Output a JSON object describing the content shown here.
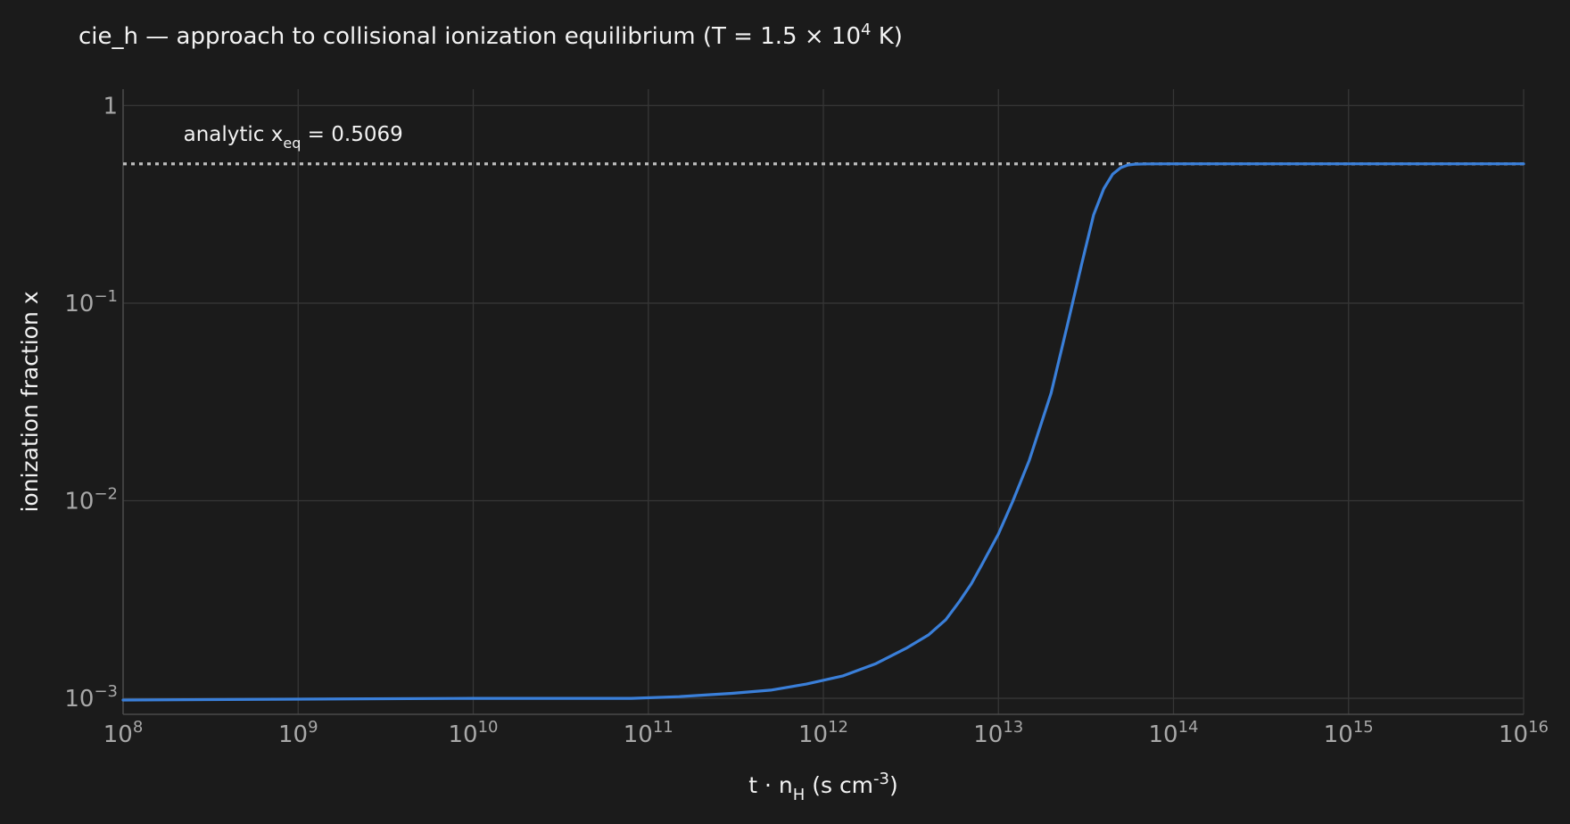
{
  "chart_data": {
    "type": "line",
    "title": "cie_h — approach to collisional ionization equilibrium (T = 1.5 × 10⁴ K)",
    "title_parts": {
      "main": "cie_h — approach to collisional ionization equilibrium (T = 1.5 × 10",
      "sup": "4",
      "tail": " K)"
    },
    "xlabel": "t · n_H  (s cm⁻³)",
    "xlabel_parts": {
      "pre": "t · n",
      "sub": "H",
      "mid": "  (s cm",
      "sup": "-3",
      "post": ")"
    },
    "ylabel": "ionization fraction x",
    "x_scale": "log",
    "y_scale": "log",
    "xlim": [
      100000000.0,
      1e+16
    ],
    "ylim": [
      0.00083,
      1.21
    ],
    "grid": true,
    "x_ticks": [
      {
        "value": 100000000.0,
        "base": "10",
        "exp": "8"
      },
      {
        "value": 1000000000.0,
        "base": "10",
        "exp": "9"
      },
      {
        "value": 10000000000.0,
        "base": "10",
        "exp": "10"
      },
      {
        "value": 100000000000.0,
        "base": "10",
        "exp": "11"
      },
      {
        "value": 1000000000000.0,
        "base": "10",
        "exp": "12"
      },
      {
        "value": 10000000000000.0,
        "base": "10",
        "exp": "13"
      },
      {
        "value": 100000000000000.0,
        "base": "10",
        "exp": "14"
      },
      {
        "value": 1000000000000000.0,
        "base": "10",
        "exp": "15"
      },
      {
        "value": 1e+16,
        "base": "10",
        "exp": "16"
      }
    ],
    "y_ticks": [
      {
        "value": 1,
        "base": "1",
        "exp": ""
      },
      {
        "value": 0.1,
        "base": "10",
        "exp": "−1"
      },
      {
        "value": 0.01,
        "base": "10",
        "exp": "−2"
      },
      {
        "value": 0.001,
        "base": "10",
        "exp": "−3"
      }
    ],
    "series": [
      {
        "color": "#3a7fd9",
        "style": "solid",
        "x": [
          100000000.0,
          1000000000.0,
          10000000000.0,
          50000000000.0,
          80000000000.0,
          150000000000.0,
          300000000000.0,
          500000000000.0,
          800000000000.0,
          1300000000000.0,
          2000000000000.0,
          3000000000000.0,
          4000000000000.0,
          5000000000000.0,
          6000000000000.0,
          7000000000000.0,
          8000000000000.0,
          10000000000000.0,
          12000000000000.0,
          15000000000000.0,
          20000000000000.0,
          25000000000000.0,
          30000000000000.0,
          35000000000000.0,
          40000000000000.0,
          45000000000000.0,
          50000000000000.0,
          55000000000000.0,
          60000000000000.0,
          70000000000000.0,
          100000000000000.0,
          1000000000000000.0,
          1e+16
        ],
        "y": [
          0.00098,
          0.00099,
          0.001,
          0.001,
          0.001,
          0.00102,
          0.00106,
          0.0011,
          0.00118,
          0.0013,
          0.0015,
          0.0018,
          0.0021,
          0.0025,
          0.0031,
          0.0038,
          0.0047,
          0.0068,
          0.0098,
          0.016,
          0.035,
          0.08,
          0.16,
          0.28,
          0.38,
          0.45,
          0.485,
          0.5,
          0.505,
          0.5065,
          0.5069,
          0.5069,
          0.5069
        ]
      }
    ],
    "reference_line": {
      "y": 0.5069,
      "color": "#bdbdbd",
      "style": "dotted"
    },
    "annotation": {
      "pre": "analytic  x",
      "sub": "eq",
      "post": " = 0.5069",
      "x": 300000000.0,
      "y": 0.72
    }
  }
}
